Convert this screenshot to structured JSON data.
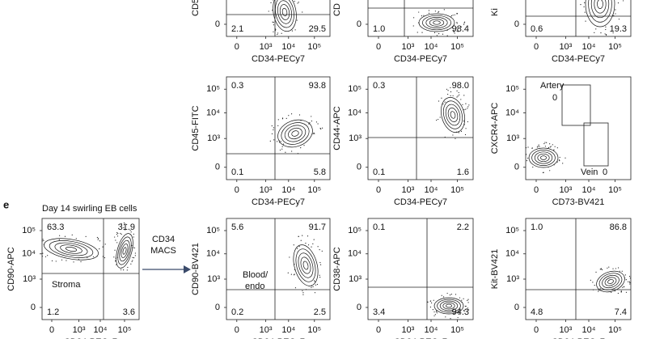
{
  "panel_letter": "e",
  "arrow_label": [
    "CD34",
    "MACS"
  ],
  "panels": [
    {
      "y_label": "CD5",
      "x_label": "CD34-PECy7",
      "y_ticks": [
        "0"
      ],
      "x_ticks": [
        "0",
        "10³",
        "10⁴",
        "10⁵"
      ],
      "quadrants": {
        "bottom_left": "2.1",
        "bottom_right": "29.5"
      }
    },
    {
      "y_label": "CD",
      "x_label": "CD34-PECy7",
      "y_ticks": [
        "0"
      ],
      "x_ticks": [
        "0",
        "10³",
        "10⁴",
        "10⁵"
      ],
      "quadrants": {
        "bottom_left": "1.0",
        "bottom_right": "98.4"
      }
    },
    {
      "y_label": "Ki",
      "x_label": "CD34-PECy7",
      "y_ticks": [
        "0"
      ],
      "x_ticks": [
        "0",
        "10³",
        "10⁴",
        "10⁵"
      ],
      "quadrants": {
        "bottom_left": "0.6",
        "bottom_right": "19.3"
      }
    },
    {
      "y_label": "CD45-FITC",
      "x_label": "CD34-PECy7",
      "y_ticks": [
        "10⁵",
        "10⁴",
        "10³",
        "0"
      ],
      "x_ticks": [
        "0",
        "10³",
        "10⁴",
        "10⁵"
      ],
      "quadrants": {
        "top_left": "0.3",
        "top_right": "93.8",
        "bottom_left": "0.1",
        "bottom_right": "5.8"
      }
    },
    {
      "y_label": "CD44-APC",
      "x_label": "CD34-PECy7",
      "y_ticks": [
        "10⁵",
        "10⁴",
        "10³",
        "0"
      ],
      "x_ticks": [
        "0",
        "10³",
        "10⁴",
        "10⁵"
      ],
      "quadrants": {
        "top_left": "0.3",
        "top_right": "98.0",
        "bottom_left": "0.1",
        "bottom_right": "1.6"
      }
    },
    {
      "y_label": "CXCR4-APC",
      "x_label": "CD73-BV421",
      "y_ticks": [
        "10⁵",
        "10⁴",
        "10³",
        "0"
      ],
      "x_ticks": [
        "0",
        "10³",
        "10⁴",
        "10⁵"
      ],
      "gates": [
        {
          "name": "Artery",
          "value": "0"
        },
        {
          "name": "Vein",
          "value": "0"
        }
      ]
    },
    {
      "title": "Day 14 swirling EB cells",
      "y_label": "CD90-APC",
      "x_label": "CD34-PECy7",
      "y_ticks": [
        "10⁵",
        "10⁴",
        "10³",
        "0"
      ],
      "x_ticks": [
        "0",
        "10³",
        "10⁴",
        "10⁵"
      ],
      "quadrants": {
        "top_left": "63.3",
        "top_right": "31.9",
        "bottom_left": "1.2",
        "bottom_right": "3.6"
      },
      "notes": [
        "Stroma"
      ]
    },
    {
      "y_label": "CD90-BV421",
      "x_label": "CD34-PECy7",
      "y_ticks": [
        "10⁵",
        "10⁴",
        "10³",
        "0"
      ],
      "x_ticks": [
        "0",
        "10³",
        "10⁴",
        "10⁵"
      ],
      "quadrants": {
        "top_left": "5.6",
        "top_right": "91.7",
        "bottom_left": "0.2",
        "bottom_right": "2.5"
      },
      "notes": [
        "Blood/",
        "endo"
      ]
    },
    {
      "y_label": "CD38-APC",
      "x_label": "CD34-PECy7",
      "y_ticks": [
        "10⁵",
        "10⁴",
        "10³",
        "0"
      ],
      "x_ticks": [
        "0",
        "10³",
        "10⁴",
        "10⁵"
      ],
      "quadrants": {
        "top_left": "0.1",
        "top_right": "2.2",
        "bottom_left": "3.4",
        "bottom_right": "94.3"
      }
    },
    {
      "y_label": "Kit-BV421",
      "x_label": "CD34-PECy7",
      "y_ticks": [
        "10⁵",
        "10⁴",
        "10³",
        "0"
      ],
      "x_ticks": [
        "0",
        "10³",
        "10⁴",
        "10⁵"
      ],
      "quadrants": {
        "top_left": "1.0",
        "top_right": "86.8",
        "bottom_left": "4.8",
        "bottom_right": "7.4"
      }
    }
  ]
}
